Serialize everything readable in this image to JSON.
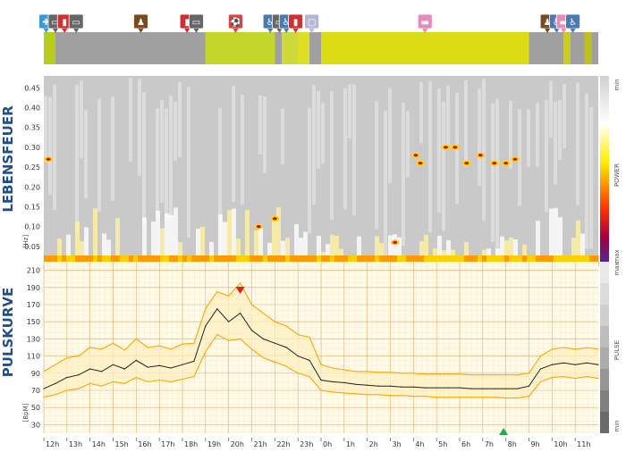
{
  "activity_strip": {
    "icons": [
      {
        "name": "hospital-pin-icon",
        "hour": 12.1
      },
      {
        "name": "car-pin-icon",
        "hour": 12.5
      },
      {
        "name": "notebook-pin-icon",
        "hour": 12.9
      },
      {
        "name": "car-pin-icon",
        "hour": 13.4
      },
      {
        "name": "walking-pin-icon",
        "hour": 16.2
      },
      {
        "name": "notebook-pin-icon",
        "hour": 18.2
      },
      {
        "name": "car-pin-icon",
        "hour": 18.6
      },
      {
        "name": "football-pin-icon",
        "hour": 20.3
      },
      {
        "name": "toilet-pin-icon",
        "hour": 21.8
      },
      {
        "name": "car-pin-icon",
        "hour": 22.2
      },
      {
        "name": "toilet-pin-icon",
        "hour": 22.5
      },
      {
        "name": "notebook-pin-icon",
        "hour": 22.9
      },
      {
        "name": "speech-bubble-pin-icon",
        "hour": 23.6
      },
      {
        "name": "bed-pin-icon",
        "hour": 28.5
      },
      {
        "name": "walking-pin-icon",
        "hour": 33.8
      },
      {
        "name": "toilet-pin-icon",
        "hour": 34.2
      },
      {
        "name": "bed-pin-icon",
        "hour": 34.5
      },
      {
        "name": "toilet-pin-icon",
        "hour": 34.9
      }
    ],
    "segments": [
      {
        "from": 12.0,
        "to": 12.5,
        "color": "#b8cc1e"
      },
      {
        "from": 12.5,
        "to": 19.0,
        "color": "#a0a0a0"
      },
      {
        "from": 19.0,
        "to": 22.0,
        "color": "#c4d62a"
      },
      {
        "from": 22.0,
        "to": 22.3,
        "color": "#a0a0a0"
      },
      {
        "from": 22.3,
        "to": 23.0,
        "color": "#cfd93a"
      },
      {
        "from": 23.0,
        "to": 23.5,
        "color": "#dede22"
      },
      {
        "from": 23.5,
        "to": 24.0,
        "color": "#a0a0a0"
      },
      {
        "from": 24.0,
        "to": 33.0,
        "color": "#dcdc14"
      },
      {
        "from": 33.0,
        "to": 34.5,
        "color": "#a0a0a0"
      },
      {
        "from": 34.5,
        "to": 34.8,
        "color": "#cccc20"
      },
      {
        "from": 34.8,
        "to": 35.4,
        "color": "#a0a0a0"
      },
      {
        "from": 35.4,
        "to": 35.7,
        "color": "#c0c020"
      },
      {
        "from": 35.7,
        "to": 36.0,
        "color": "#a0a0a0"
      }
    ]
  },
  "lebensfeuer": {
    "title": "LEBENSFEUER",
    "unit": "[Hz]",
    "yticks": [
      "0.05",
      "0.10",
      "0.15",
      "0.20",
      "0.25",
      "0.30",
      "0.35",
      "0.40",
      "0.45"
    ],
    "colorbar": {
      "top": "min",
      "middle": "POWER",
      "bottom": "max"
    }
  },
  "pulskurve": {
    "title": "PULSKURVE",
    "unit": "[BpM]",
    "yticks": [
      "30",
      "50",
      "70",
      "90",
      "110",
      "130",
      "150",
      "170",
      "190",
      "210"
    ],
    "colorbar": {
      "top": "max",
      "middle": "PULSE",
      "bottom": "min"
    }
  },
  "xticks": [
    "12h",
    "13h",
    "14h",
    "15h",
    "16h",
    "17h",
    "18h",
    "19h",
    "20h",
    "21h",
    "22h",
    "23h",
    "0h",
    "1h",
    "2h",
    "3h",
    "4h",
    "5h",
    "6h",
    "7h",
    "8h",
    "9h",
    "10h",
    "11h"
  ],
  "chart_data": [
    {
      "type": "heatmap",
      "title": "LEBENSFEUER",
      "ylabel": "[Hz]",
      "ylim": [
        0,
        0.48
      ],
      "x_range_hours": [
        12,
        36
      ],
      "colorscale_label": "POWER",
      "colorscale_ends": [
        "min",
        "max"
      ],
      "hotspots": [
        {
          "hour": 12.2,
          "hz": 0.27
        },
        {
          "hour": 21.3,
          "hz": 0.1
        },
        {
          "hour": 22.0,
          "hz": 0.12
        },
        {
          "hour": 27.2,
          "hz": 0.06
        },
        {
          "hour": 28.1,
          "hz": 0.28
        },
        {
          "hour": 28.3,
          "hz": 0.26
        },
        {
          "hour": 29.4,
          "hz": 0.3
        },
        {
          "hour": 29.8,
          "hz": 0.3
        },
        {
          "hour": 30.3,
          "hz": 0.26
        },
        {
          "hour": 30.9,
          "hz": 0.28
        },
        {
          "hour": 31.5,
          "hz": 0.26
        },
        {
          "hour": 32.0,
          "hz": 0.26
        },
        {
          "hour": 32.4,
          "hz": 0.27
        }
      ]
    },
    {
      "type": "line",
      "title": "PULSKURVE",
      "ylabel": "[BpM]",
      "ylim": [
        20,
        220
      ],
      "x_range_hours": [
        12,
        36
      ],
      "hours": [
        12,
        12.5,
        13,
        13.5,
        14,
        14.5,
        15,
        15.5,
        16,
        16.5,
        17,
        17.5,
        18,
        18.5,
        19,
        19.5,
        20,
        20.5,
        21,
        21.5,
        22,
        22.5,
        23,
        23.5,
        24,
        24.5,
        25,
        25.5,
        26,
        26.5,
        27,
        27.5,
        28,
        28.5,
        29,
        29.5,
        30,
        30.5,
        31,
        31.5,
        32,
        32.5,
        33,
        33.5,
        34,
        34.5,
        35,
        35.5,
        36
      ],
      "series": [
        {
          "name": "",
          "role": "upper",
          "color": "#ffa500",
          "values": [
            92,
            100,
            108,
            110,
            120,
            118,
            125,
            117,
            130,
            120,
            122,
            118,
            124,
            125,
            165,
            185,
            180,
            195,
            170,
            160,
            150,
            145,
            135,
            132,
            100,
            96,
            94,
            92,
            92,
            91,
            91,
            90,
            90,
            89,
            89,
            89,
            89,
            88,
            88,
            88,
            88,
            88,
            90,
            110,
            118,
            120,
            118,
            120,
            118
          ]
        },
        {
          "name": "",
          "role": "mean",
          "color": "#222222",
          "values": [
            72,
            78,
            85,
            88,
            95,
            92,
            100,
            95,
            105,
            97,
            99,
            96,
            100,
            104,
            145,
            165,
            150,
            160,
            140,
            130,
            125,
            120,
            110,
            105,
            82,
            80,
            79,
            77,
            76,
            75,
            75,
            74,
            74,
            73,
            73,
            73,
            73,
            72,
            72,
            72,
            72,
            72,
            75,
            95,
            100,
            102,
            100,
            102,
            100
          ]
        },
        {
          "name": "",
          "role": "lower",
          "color": "#ffa500",
          "values": [
            62,
            65,
            70,
            72,
            78,
            75,
            80,
            78,
            85,
            80,
            82,
            80,
            83,
            86,
            115,
            135,
            128,
            130,
            118,
            108,
            103,
            98,
            90,
            86,
            70,
            68,
            67,
            66,
            65,
            65,
            64,
            64,
            63,
            63,
            62,
            62,
            62,
            62,
            62,
            62,
            61,
            61,
            63,
            80,
            85,
            86,
            84,
            86,
            84
          ]
        }
      ],
      "markers": [
        {
          "name": "max-marker",
          "hour": 20.5,
          "symbol": "triangle-down",
          "color": "#e22020"
        },
        {
          "name": "min-marker",
          "hour": 31.9,
          "symbol": "triangle-up",
          "color": "#22aa44"
        }
      ]
    }
  ]
}
